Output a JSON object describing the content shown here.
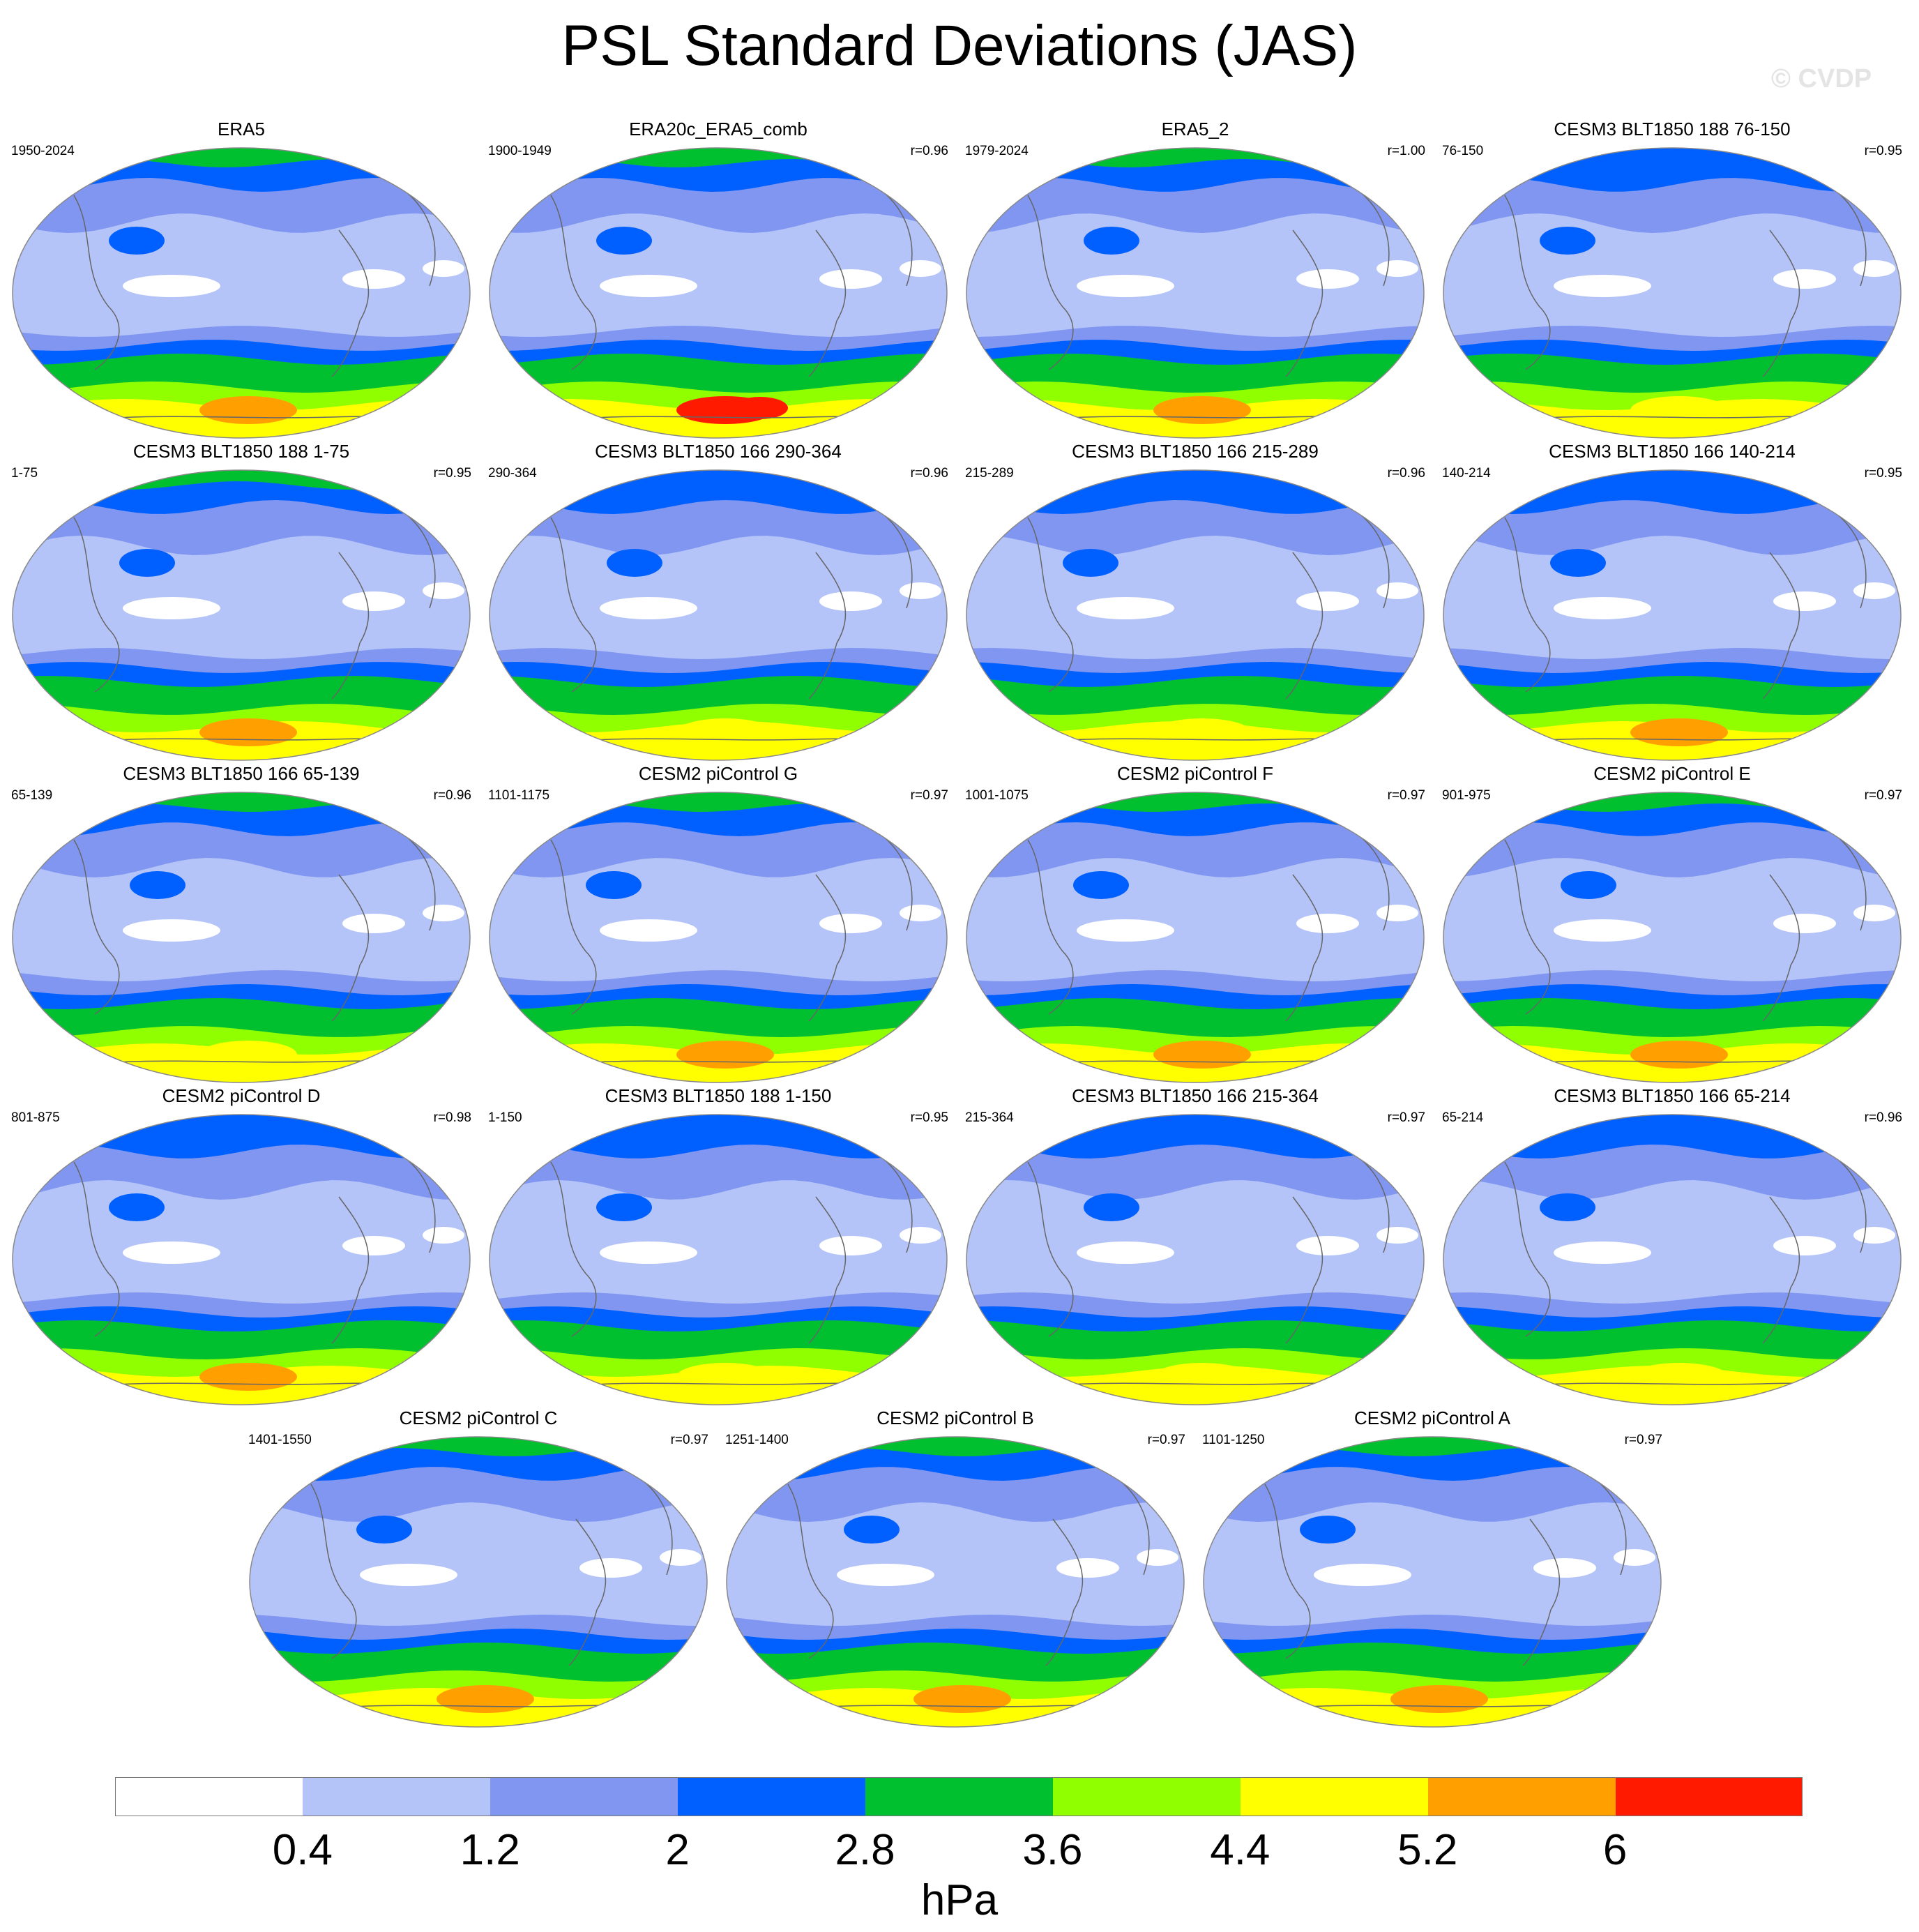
{
  "title": "PSL Standard Deviations (JAS)",
  "watermark": "© CVDP",
  "legend": {
    "units": "hPa",
    "ticks": [
      "0.4",
      "1.2",
      "2",
      "2.8",
      "3.6",
      "4.4",
      "5.2",
      "6"
    ],
    "colors": [
      "#ffffff",
      "#b4c4f8",
      "#8096f0",
      "#0060ff",
      "#00c030",
      "#90ff00",
      "#ffff00",
      "#ffa000",
      "#ff1a00"
    ]
  },
  "panels": [
    {
      "title": "ERA5",
      "years": "1950-2024",
      "corr": "",
      "south_max": 5.6,
      "north": 2.9
    },
    {
      "title": "ERA20c_ERA5_comb",
      "years": "1900-1949",
      "corr": "r=0.96",
      "south_max": 6.5,
      "north": 2.9
    },
    {
      "title": "ERA5_2",
      "years": "1979-2024",
      "corr": "r=1.00",
      "south_max": 5.6,
      "north": 2.9
    },
    {
      "title": "CESM3 BLT1850 188 76-150",
      "years": "76-150",
      "corr": "r=0.95",
      "south_max": 5.0,
      "north": 2.2
    },
    {
      "title": "CESM3 BLT1850 188 1-75",
      "years": "1-75",
      "corr": "r=0.95",
      "south_max": 5.6,
      "north": 2.9
    },
    {
      "title": "CESM3 BLT1850 166 290-364",
      "years": "290-364",
      "corr": "r=0.96",
      "south_max": 5.0,
      "north": 2.2
    },
    {
      "title": "CESM3 BLT1850 166 215-289",
      "years": "215-289",
      "corr": "r=0.96",
      "south_max": 5.0,
      "north": 2.2
    },
    {
      "title": "CESM3 BLT1850 166 140-214",
      "years": "140-214",
      "corr": "r=0.95",
      "south_max": 5.6,
      "north": 2.2
    },
    {
      "title": "CESM3 BLT1850 166 65-139",
      "years": "65-139",
      "corr": "r=0.96",
      "south_max": 5.0,
      "north": 2.9
    },
    {
      "title": "CESM2 piControl G",
      "years": "1101-1175",
      "corr": "r=0.97",
      "south_max": 5.6,
      "north": 3.0
    },
    {
      "title": "CESM2 piControl F",
      "years": "1001-1075",
      "corr": "r=0.97",
      "south_max": 5.6,
      "north": 3.0
    },
    {
      "title": "CESM2 piControl E",
      "years": "901-975",
      "corr": "r=0.97",
      "south_max": 5.6,
      "north": 3.0
    },
    {
      "title": "CESM2 piControl D",
      "years": "801-875",
      "corr": "r=0.98",
      "south_max": 5.6,
      "north": 2.2
    },
    {
      "title": "CESM3 BLT1850 188 1-150",
      "years": "1-150",
      "corr": "r=0.95",
      "south_max": 5.0,
      "north": 2.2
    },
    {
      "title": "CESM3 BLT1850 166 215-364",
      "years": "215-364",
      "corr": "r=0.97",
      "south_max": 5.0,
      "north": 2.2
    },
    {
      "title": "CESM3 BLT1850 166 65-214",
      "years": "65-214",
      "corr": "r=0.96",
      "south_max": 5.0,
      "north": 2.2
    },
    {
      "title": "CESM2 piControl C",
      "years": "1401-1550",
      "corr": "r=0.97",
      "south_max": 5.6,
      "north": 3.0
    },
    {
      "title": "CESM2 piControl B",
      "years": "1251-1400",
      "corr": "r=0.97",
      "south_max": 5.6,
      "north": 3.0
    },
    {
      "title": "CESM2 piControl A",
      "years": "1101-1250",
      "corr": "r=0.97",
      "south_max": 5.6,
      "north": 3.0
    }
  ]
}
